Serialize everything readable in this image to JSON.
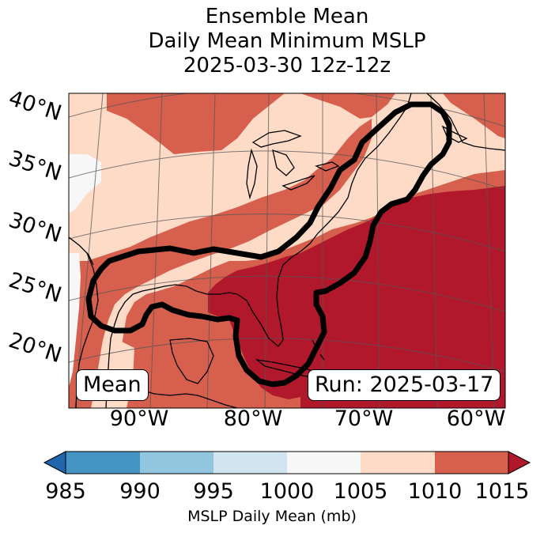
{
  "title": {
    "line1": "Ensemble Mean",
    "line2": "Daily Mean Minimum MSLP",
    "line3": "2025-03-30 12z-12z"
  },
  "map": {
    "lat_labels": [
      "40°N",
      "35°N",
      "30°N",
      "25°N",
      "20°N"
    ],
    "lon_labels": [
      "90°W",
      "80°W",
      "70°W",
      "60°W"
    ],
    "mean_label": "Mean",
    "run_label": "Run: 2025-03-17",
    "colors": {
      "ocean_dark": "#b2182b",
      "mid_red": "#d6604d",
      "light_salmon": "#fddbc7",
      "near_white": "#f7f7f7",
      "contour": "#000000"
    }
  },
  "colorbar": {
    "label": "MSLP Daily Mean (mb)",
    "ticks": [
      "985",
      "990",
      "995",
      "1000",
      "1005",
      "1010",
      "1015"
    ],
    "colors": [
      "#2166ac",
      "#4393c3",
      "#92c5de",
      "#d1e5f0",
      "#f7f7f7",
      "#fddbc7",
      "#d6604d",
      "#b2182b"
    ]
  }
}
